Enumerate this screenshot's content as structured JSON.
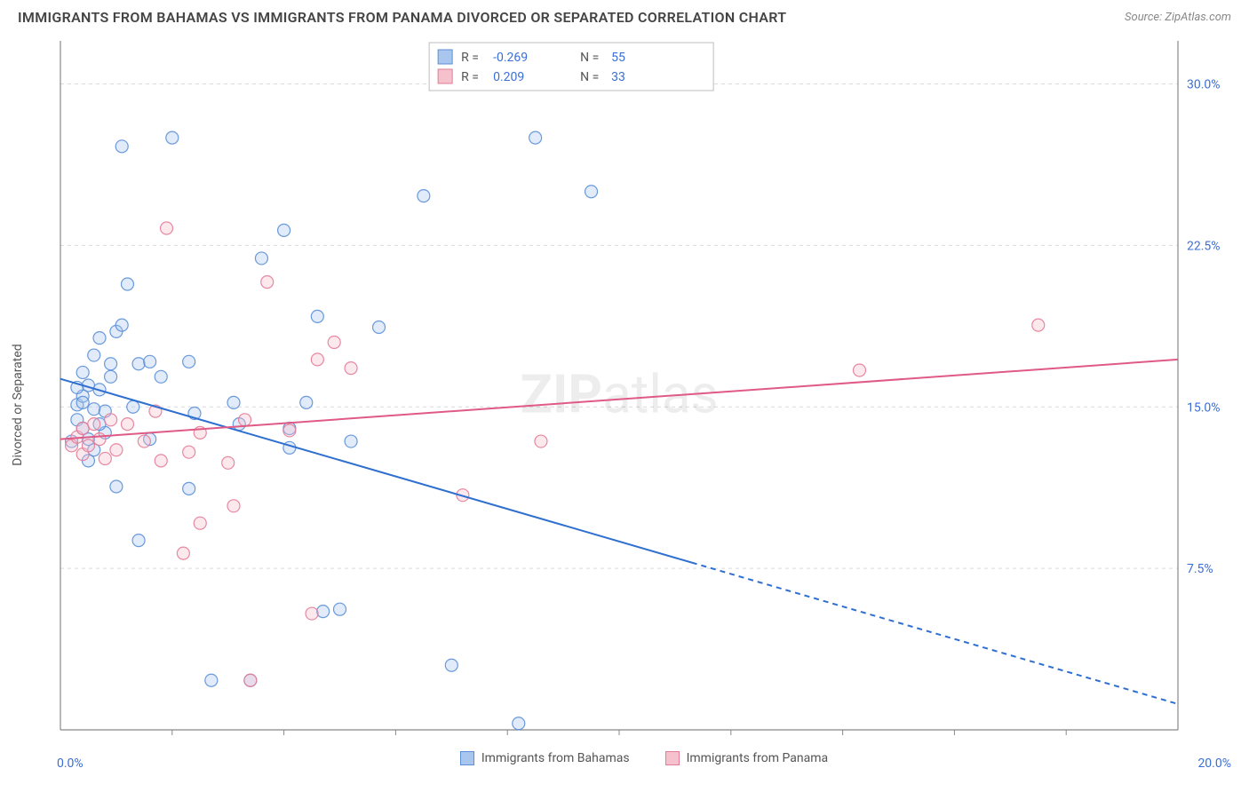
{
  "title": "IMMIGRANTS FROM BAHAMAS VS IMMIGRANTS FROM PANAMA DIVORCED OR SEPARATED CORRELATION CHART",
  "source": "Source: ZipAtlas.com",
  "watermark": "ZIPatlas",
  "chart": {
    "type": "scatter",
    "y_label": "Divorced or Separated",
    "x_range": [
      0,
      20
    ],
    "y_range": [
      0,
      32
    ],
    "x_tick_label_min": "0.0%",
    "x_tick_label_max": "20.0%",
    "y_grid": [
      7.5,
      15.0,
      22.5,
      30.0
    ],
    "y_grid_labels": [
      "7.5%",
      "15.0%",
      "22.5%",
      "30.0%"
    ],
    "x_minor_ticks": [
      2,
      4,
      6,
      8,
      10,
      12,
      14,
      16,
      18
    ],
    "background_color": "#ffffff",
    "grid_color": "#d9d9d9",
    "axis_color": "#888888",
    "tick_label_color": "#3b6fd6",
    "marker_radius": 7,
    "marker_fill_opacity": 0.35,
    "marker_stroke_opacity": 0.9,
    "line_width": 2,
    "series": [
      {
        "name": "Immigrants from Bahamas",
        "color_fill": "#a9c6ef",
        "color_stroke": "#5b8fd8",
        "line_color": "#2f6fd0",
        "R": "-0.269",
        "N": "55",
        "trend": {
          "x1": 0,
          "y1": 16.3,
          "x2": 20,
          "y2": 1.2,
          "solid_until_x": 11.3
        },
        "points": [
          [
            0.2,
            13.4
          ],
          [
            0.3,
            14.4
          ],
          [
            0.3,
            15.1
          ],
          [
            0.4,
            14.0
          ],
          [
            0.4,
            15.5
          ],
          [
            0.4,
            16.6
          ],
          [
            0.5,
            12.5
          ],
          [
            0.5,
            13.5
          ],
          [
            0.5,
            16.0
          ],
          [
            0.6,
            13.0
          ],
          [
            0.6,
            14.9
          ],
          [
            0.6,
            17.4
          ],
          [
            0.7,
            18.2
          ],
          [
            0.7,
            15.8
          ],
          [
            0.8,
            13.8
          ],
          [
            0.8,
            14.8
          ],
          [
            0.9,
            16.4
          ],
          [
            0.9,
            17.0
          ],
          [
            1.0,
            11.3
          ],
          [
            1.0,
            18.5
          ],
          [
            1.1,
            18.8
          ],
          [
            1.1,
            27.1
          ],
          [
            1.2,
            20.7
          ],
          [
            1.3,
            15.0
          ],
          [
            1.4,
            17.0
          ],
          [
            1.4,
            8.8
          ],
          [
            1.6,
            17.1
          ],
          [
            1.6,
            13.5
          ],
          [
            1.8,
            16.4
          ],
          [
            2.0,
            27.5
          ],
          [
            2.3,
            11.2
          ],
          [
            2.3,
            17.1
          ],
          [
            2.4,
            14.7
          ],
          [
            2.7,
            2.3
          ],
          [
            3.1,
            15.2
          ],
          [
            3.2,
            14.2
          ],
          [
            3.4,
            2.3
          ],
          [
            3.6,
            21.9
          ],
          [
            4.0,
            23.2
          ],
          [
            4.1,
            14.0
          ],
          [
            4.1,
            13.1
          ],
          [
            4.4,
            15.2
          ],
          [
            4.6,
            19.2
          ],
          [
            4.7,
            5.5
          ],
          [
            5.0,
            5.6
          ],
          [
            5.2,
            13.4
          ],
          [
            5.7,
            18.7
          ],
          [
            6.5,
            24.8
          ],
          [
            7.0,
            3.0
          ],
          [
            8.2,
            0.3
          ],
          [
            8.5,
            27.5
          ],
          [
            9.5,
            25.0
          ],
          [
            0.3,
            15.9
          ],
          [
            0.4,
            15.2
          ],
          [
            0.7,
            14.2
          ]
        ]
      },
      {
        "name": "Immigrants from Panama",
        "color_fill": "#f5c1cd",
        "color_stroke": "#e67b97",
        "line_color": "#e05a86",
        "R": "0.209",
        "N": "33",
        "trend": {
          "x1": 0,
          "y1": 13.5,
          "x2": 20,
          "y2": 17.2,
          "solid_until_x": 20
        },
        "points": [
          [
            0.2,
            13.2
          ],
          [
            0.3,
            13.6
          ],
          [
            0.4,
            12.8
          ],
          [
            0.4,
            14.0
          ],
          [
            0.5,
            13.2
          ],
          [
            0.6,
            14.2
          ],
          [
            0.7,
            13.5
          ],
          [
            0.8,
            12.6
          ],
          [
            0.9,
            14.4
          ],
          [
            1.0,
            13.0
          ],
          [
            1.2,
            14.2
          ],
          [
            1.5,
            13.4
          ],
          [
            1.7,
            14.8
          ],
          [
            1.8,
            12.5
          ],
          [
            1.9,
            23.3
          ],
          [
            2.2,
            8.2
          ],
          [
            2.3,
            12.9
          ],
          [
            2.5,
            9.6
          ],
          [
            2.5,
            13.8
          ],
          [
            3.0,
            12.4
          ],
          [
            3.1,
            10.4
          ],
          [
            3.3,
            14.4
          ],
          [
            3.4,
            2.3
          ],
          [
            3.7,
            20.8
          ],
          [
            4.1,
            13.9
          ],
          [
            4.5,
            5.4
          ],
          [
            4.6,
            17.2
          ],
          [
            4.9,
            18.0
          ],
          [
            5.2,
            16.8
          ],
          [
            7.2,
            10.9
          ],
          [
            8.6,
            13.4
          ],
          [
            14.3,
            16.7
          ],
          [
            17.5,
            18.8
          ]
        ]
      }
    ],
    "legend_box": {
      "border_color": "#bdbdbd",
      "bg_color": "#ffffff",
      "label_color": "#555555",
      "value_color": "#3b6fd6",
      "R_label": "R =",
      "N_label": "N ="
    }
  },
  "bottom_legend": {
    "items": [
      {
        "label": "Immigrants from Bahamas",
        "fill": "#a9c6ef",
        "stroke": "#5b8fd8"
      },
      {
        "label": "Immigrants from Panama",
        "fill": "#f5c1cd",
        "stroke": "#e67b97"
      }
    ]
  }
}
